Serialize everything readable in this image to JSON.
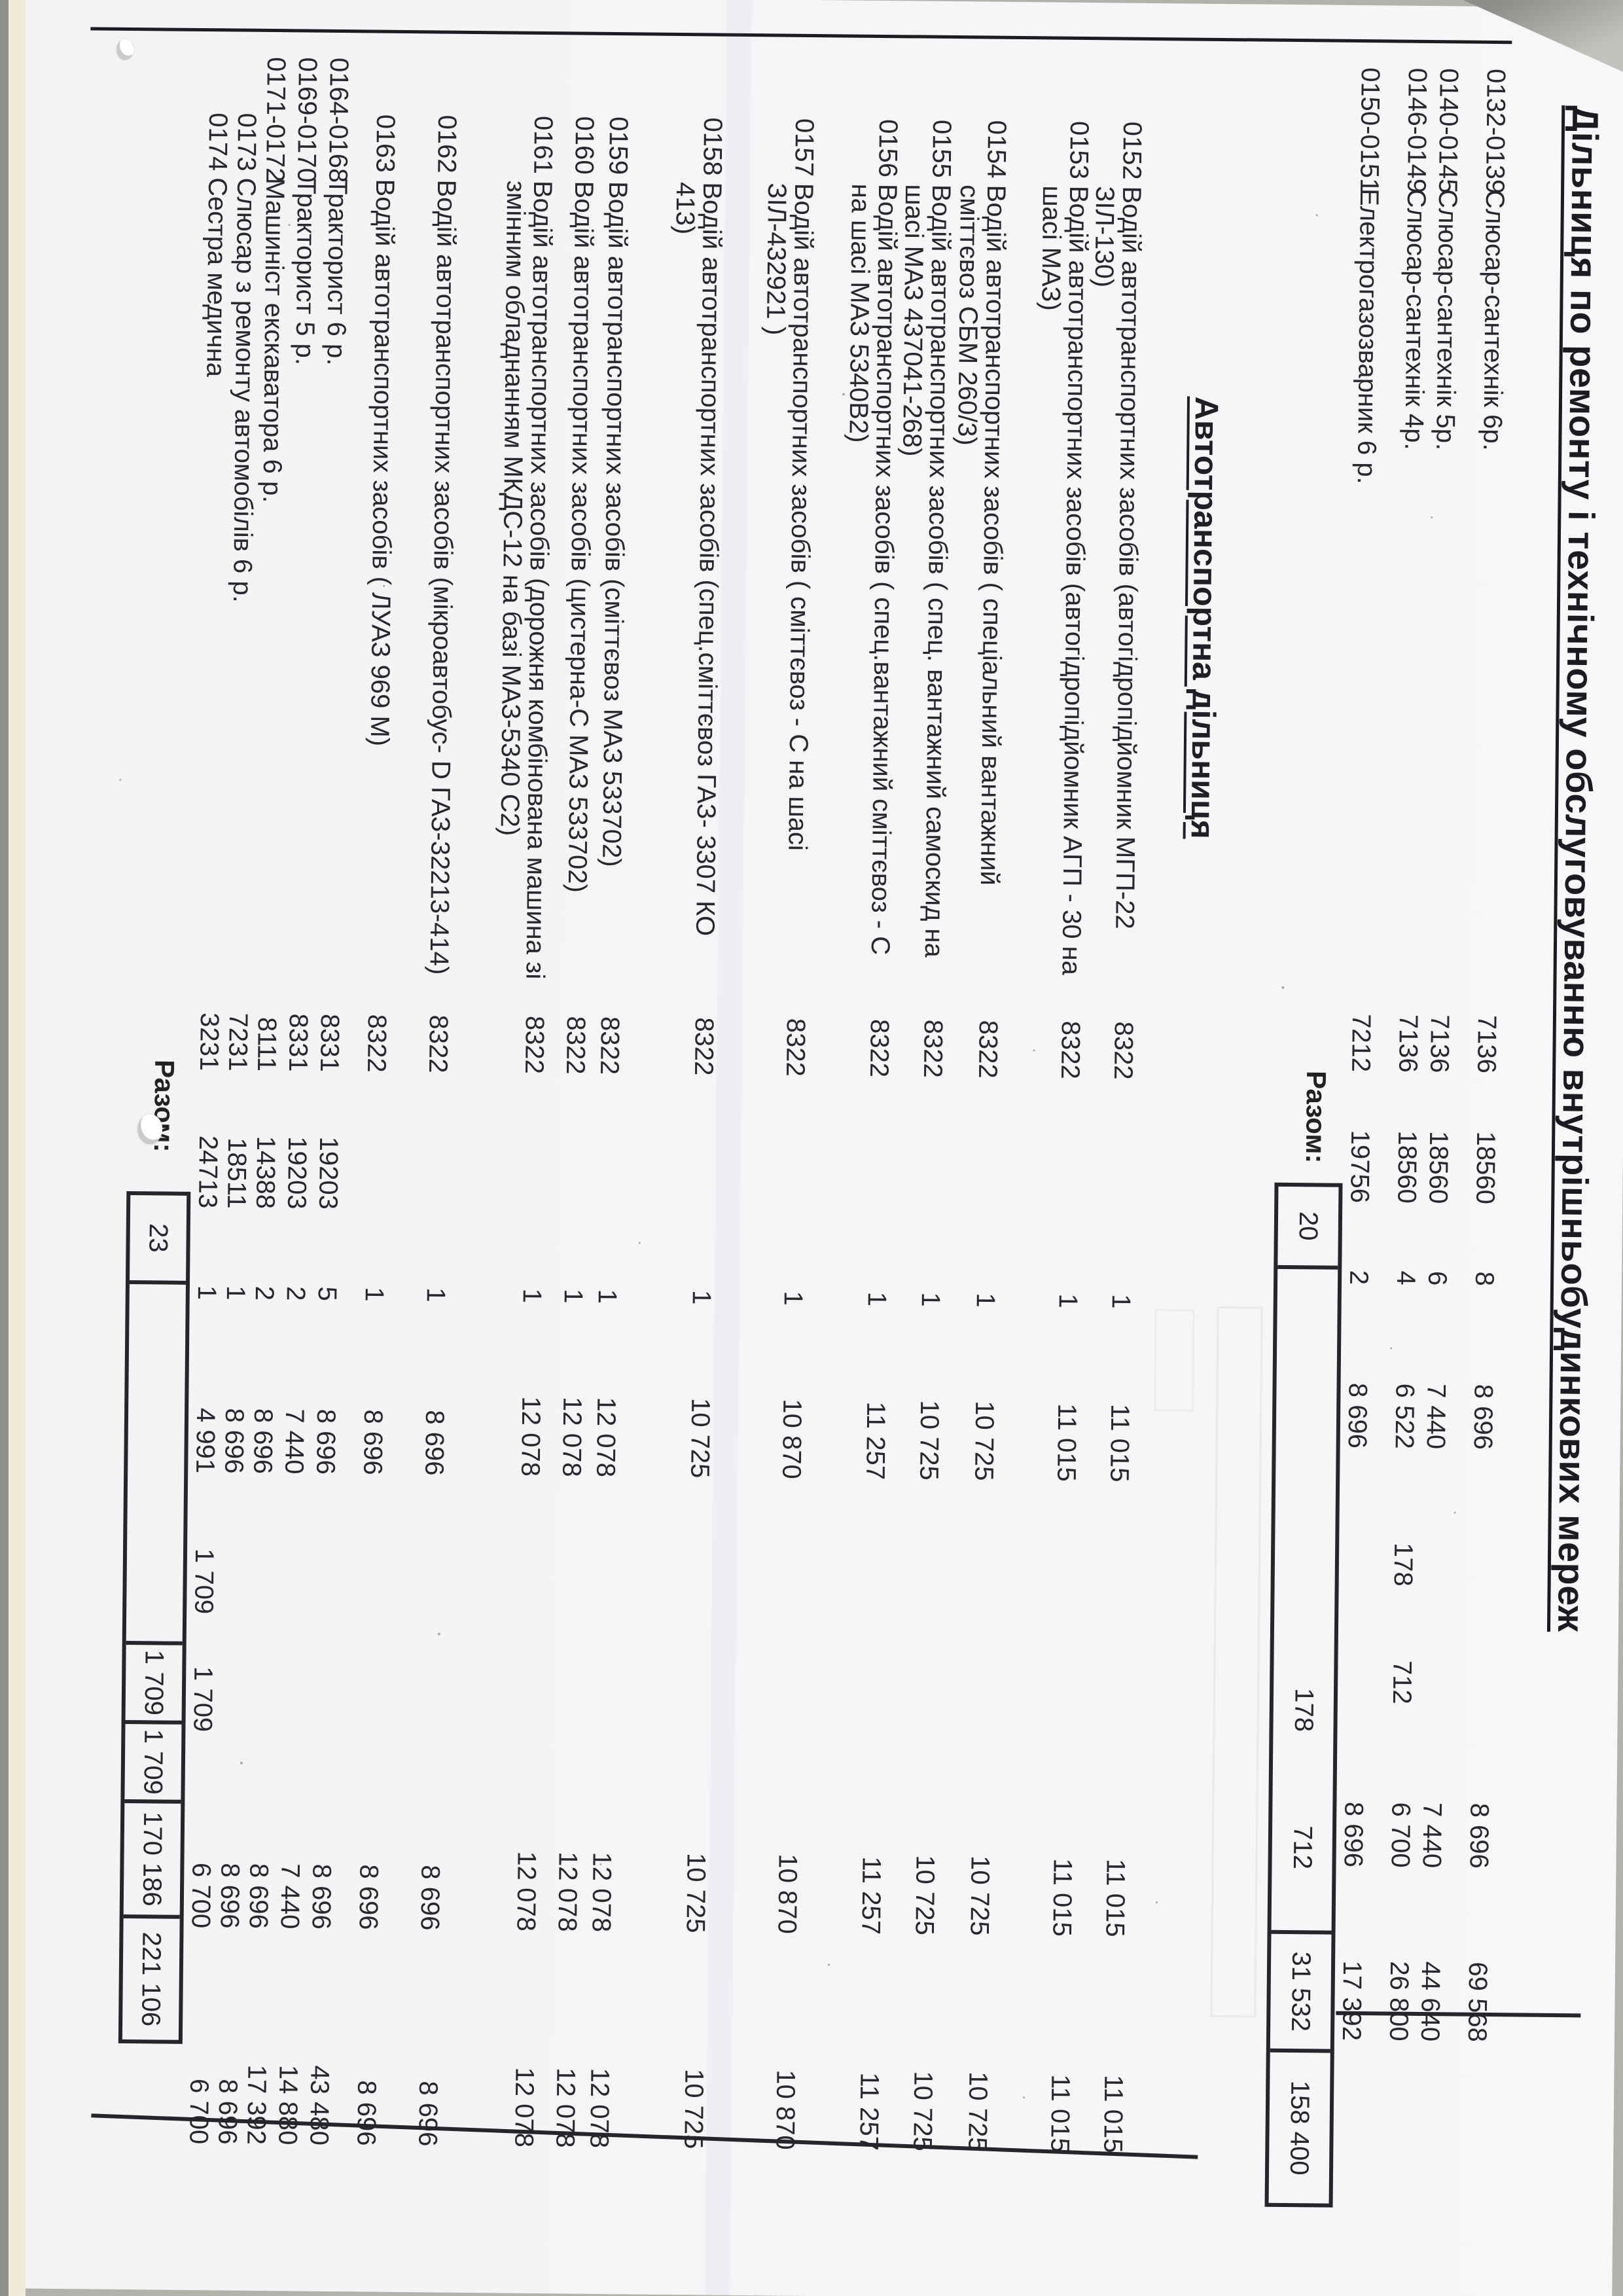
{
  "doc": {
    "title": "Дільниця по ремонту і технічному обслуговуванню внутрішньобудинкових мереж",
    "totals_label": "Разом:",
    "section1": {
      "rows": [
        {
          "code": "0132-0139",
          "name": "Слюсар-сантехнік  6р.",
          "kp": "7136",
          "zk": "18560",
          "n": "8",
          "okl": "8 696",
          "dop": "",
          "dops": "",
          "mf": "8 696",
          "rf": "69 568"
        },
        {
          "code": "0140-0145",
          "name": "Слюсар-сантехнік  5р.",
          "kp": "7136",
          "zk": "18560",
          "n": "6",
          "okl": "7 440",
          "dop": "",
          "dops": "",
          "mf": "7 440",
          "rf": "44 640"
        },
        {
          "code": "0146-0149",
          "name": "Слюсар-сантехнік  4р.",
          "kp": "7136",
          "zk": "18560",
          "n": "4",
          "okl": "6 522",
          "dop": "178",
          "dops": "712",
          "mf": "6 700",
          "rf": "26 800"
        },
        {
          "code": "0150-0151",
          "name": "Електрогазозварник  6 р.",
          "kp": "7212",
          "zk": "19756",
          "n": "2",
          "okl": "8 696",
          "dop": "",
          "dops": "",
          "mf": "8 696",
          "rf": "17 392"
        }
      ],
      "totals": {
        "count": "20",
        "dop": "178",
        "dops": "712",
        "monthly": "31 532",
        "yearly": "158 400"
      }
    },
    "section2": {
      "header": "Автотранспортна дільниця",
      "rows": [
        {
          "code": "0152",
          "name": "Водій автотранспортних засобів (автогідропідйомник МГП-22  ЗІЛ-130)",
          "kp": "8322",
          "zk": "",
          "n": "1",
          "okl": "11 015",
          "dop": "",
          "dops": "",
          "mf": "11 015",
          "rf": "11 015"
        },
        {
          "code": "0153",
          "name": "Водій автотранспортних засобів (автогідропідйомник АГП - 30 на шасі МАЗ)",
          "kp": "8322",
          "zk": "",
          "n": "1",
          "okl": "11 015",
          "dop": "",
          "dops": "",
          "mf": "11 015",
          "rf": "11 015"
        },
        {
          "code": "0154",
          "name": "Водій автотранспортних засобів ( спеціальний вантажний сміттєвоз СБМ 260/3)",
          "kp": "8322",
          "zk": "",
          "n": "1",
          "okl": "10 725",
          "dop": "",
          "dops": "",
          "mf": "10 725",
          "rf": "10 725"
        },
        {
          "code": "0155",
          "name": "Водій автотранспортних засобів ( спец. вантажний самоскид на шасі МАЗ 437041-268)",
          "kp": "8322",
          "zk": "",
          "n": "1",
          "okl": "10 725",
          "dop": "",
          "dops": "",
          "mf": "10 725",
          "rf": "10 725"
        },
        {
          "code": "0156",
          "name": "Водій автотранспортних засобів ( спец.вантажний сміттєвоз - С на шасі МАЗ 5340В2)",
          "kp": "8322",
          "zk": "",
          "n": "1",
          "okl": "11 257",
          "dop": "",
          "dops": "",
          "mf": "11 257",
          "rf": "11 257"
        },
        {
          "code": "0157",
          "name": "Водій автотранспортних засобів ( сміттєвоз - С на шасі ЗІЛ-432921 )",
          "kp": "8322",
          "zk": "",
          "n": "1",
          "okl": "10 870",
          "dop": "",
          "dops": "",
          "mf": "10 870",
          "rf": "10 870"
        },
        {
          "code": "0158",
          "name": "Водій автотранспортних засобів (спец.сміттєвоз ГАЗ- 3307 КО 413)",
          "kp": "8322",
          "zk": "",
          "n": "1",
          "okl": "10 725",
          "dop": "",
          "dops": "",
          "mf": "10 725",
          "rf": "10 725"
        },
        {
          "code": "0159",
          "name": "Водій автотранспортних засобів (сміттєвоз МАЗ 533702)",
          "kp": "8322",
          "zk": "",
          "n": "1",
          "okl": "12 078",
          "dop": "",
          "dops": "",
          "mf": "12 078",
          "rf": "12 078"
        },
        {
          "code": "0160",
          "name": "Водій автотранспортних засобів (цистерна-С МАЗ 533702)",
          "kp": "8322",
          "zk": "",
          "n": "1",
          "okl": "12 078",
          "dop": "",
          "dops": "",
          "mf": "12 078",
          "rf": "12 078"
        },
        {
          "code": "0161",
          "name": "Водій автотранспортних засобів (дорожня комбінована машина зі змінним обладнанням МКДС-12 на базі МАЗ-5340 С2)",
          "kp": "8322",
          "zk": "",
          "n": "1",
          "okl": "12 078",
          "dop": "",
          "dops": "",
          "mf": "12 078",
          "rf": "12 078"
        },
        {
          "code": "0162",
          "name": "Водій автотранспортних засобів (мікроавтобус- D ГАЗ-32213-414)",
          "kp": "8322",
          "zk": "",
          "n": "1",
          "okl": "8 696",
          "dop": "",
          "dops": "",
          "mf": "8 696",
          "rf": "8 696"
        },
        {
          "code": "0163",
          "name": "Водій автотранспортних засобів ( ЛУАЗ 969 М)",
          "kp": "8322",
          "zk": "",
          "n": "1",
          "okl": "8 696",
          "dop": "",
          "dops": "",
          "mf": "8 696",
          "rf": "8 696"
        },
        {
          "code": "0164-0168",
          "name": "Тракторист   6 р.",
          "kp": "8331",
          "zk": "19203",
          "n": "5",
          "okl": "8 696",
          "dop": "",
          "dops": "",
          "mf": "8 696",
          "rf": "43 480"
        },
        {
          "code": "0169-0170",
          "name": "Тракторист   5 р.",
          "kp": "8331",
          "zk": "19203",
          "n": "2",
          "okl": "7 440",
          "dop": "",
          "dops": "",
          "mf": "7 440",
          "rf": "14 880"
        },
        {
          "code": "0171-0172",
          "name": "Машиніст екскаватора    6 р.",
          "kp": "8111",
          "zk": "14388",
          "n": "2",
          "okl": "8 696",
          "dop": "",
          "dops": "",
          "mf": "8 696",
          "rf": "17 392"
        },
        {
          "code": "0173",
          "name": "Слюсар з ремонту автомобілів  6 р.",
          "kp": "7231",
          "zk": "18511",
          "n": "1",
          "okl": "8 696",
          "dop": "",
          "dops": "",
          "mf": "8 696",
          "rf": "8 696"
        },
        {
          "code": "0174",
          "name": "Сестра медична",
          "kp": "3231",
          "zk": "24713",
          "n": "1",
          "okl": "4 991",
          "dop": "1 709",
          "dops": "1 709",
          "mf": "6 700",
          "rf": "6 700"
        }
      ],
      "totals": {
        "count": "23",
        "dop": "1 709",
        "dops": "1 709",
        "monthly": "170 186",
        "yearly": "221 106"
      }
    }
  }
}
